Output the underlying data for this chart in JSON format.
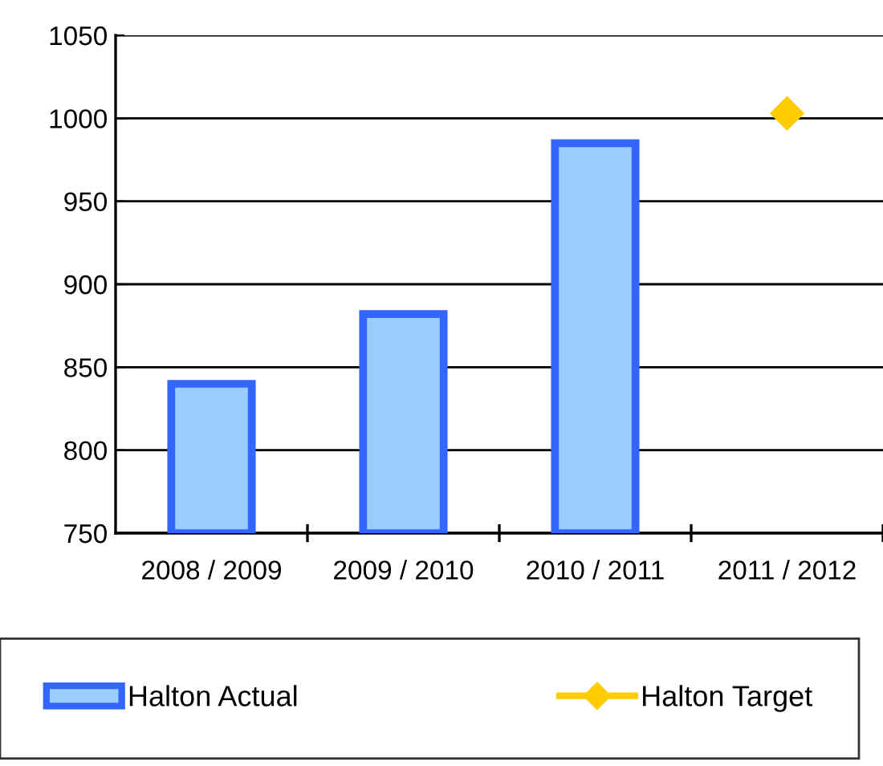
{
  "chart_data": {
    "type": "bar",
    "categories": [
      "2008 / 2009",
      "2009 / 2010",
      "2010 / 2011",
      "2011 / 2012"
    ],
    "series": [
      {
        "name": "Halton Actual",
        "color": "#99ccff",
        "values": [
          840,
          882,
          985,
          null
        ]
      },
      {
        "name": "Halton Target",
        "type": "line",
        "color": "#ffcc00",
        "marker": "diamond",
        "values": [
          null,
          null,
          null,
          1003
        ]
      }
    ],
    "ylim": [
      750,
      1050
    ],
    "yticks": [
      750,
      800,
      850,
      900,
      950,
      1000,
      1050
    ],
    "grid": "y",
    "legend": "bottom"
  }
}
